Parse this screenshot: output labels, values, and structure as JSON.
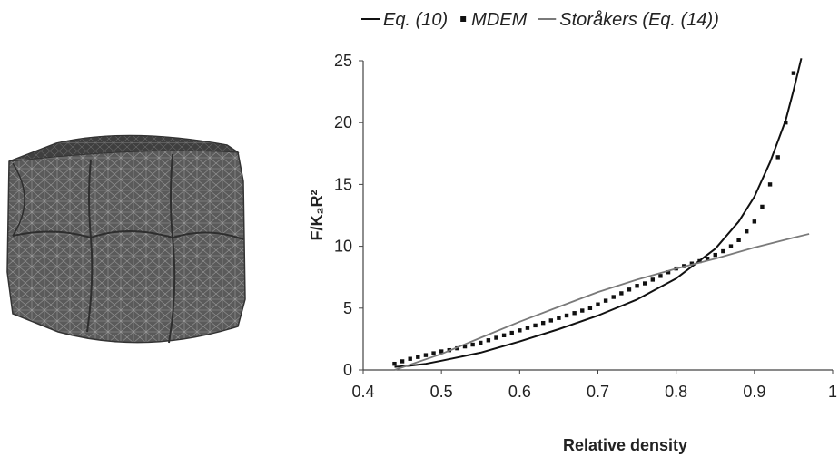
{
  "mesh_figure": {
    "description_icon": "meshed-particle-cube-icon"
  },
  "chart_data": {
    "type": "line",
    "title": "",
    "xlabel": "Relative density",
    "ylabel": "F/K₂R²",
    "xlim": [
      0.4,
      1
    ],
    "ylim": [
      0,
      25
    ],
    "x_ticks": [
      0.4,
      0.5,
      0.6,
      0.7,
      0.8,
      0.9,
      1
    ],
    "x_tick_labels": [
      "0.4",
      "0.5",
      "0.6",
      "0.7",
      "0.8",
      "0.9",
      "1"
    ],
    "y_ticks": [
      0,
      5,
      10,
      15,
      20,
      25
    ],
    "y_tick_labels": [
      "0",
      "5",
      "10",
      "15",
      "20",
      "25"
    ],
    "grid": false,
    "legend_position": "top",
    "series": [
      {
        "name": "Eq. (10)",
        "style": "solid-line",
        "color": "#111111",
        "x": [
          0.44,
          0.46,
          0.48,
          0.5,
          0.55,
          0.6,
          0.65,
          0.7,
          0.75,
          0.8,
          0.85,
          0.88,
          0.9,
          0.92,
          0.94,
          0.95,
          0.96
        ],
        "y": [
          0.25,
          0.35,
          0.5,
          0.75,
          1.4,
          2.3,
          3.3,
          4.4,
          5.7,
          7.4,
          9.8,
          12.0,
          14.0,
          16.8,
          20.2,
          22.6,
          25.2
        ]
      },
      {
        "name": "MDEM",
        "style": "square-markers",
        "color": "#111111",
        "x": [
          0.44,
          0.45,
          0.46,
          0.47,
          0.48,
          0.49,
          0.5,
          0.51,
          0.52,
          0.53,
          0.54,
          0.55,
          0.56,
          0.57,
          0.58,
          0.59,
          0.6,
          0.61,
          0.62,
          0.63,
          0.64,
          0.65,
          0.66,
          0.67,
          0.68,
          0.69,
          0.7,
          0.71,
          0.72,
          0.73,
          0.74,
          0.75,
          0.76,
          0.77,
          0.78,
          0.79,
          0.8,
          0.81,
          0.82,
          0.83,
          0.84,
          0.85,
          0.86,
          0.87,
          0.88,
          0.89,
          0.9,
          0.91,
          0.92,
          0.93,
          0.94,
          0.95
        ],
        "y": [
          0.5,
          0.7,
          0.9,
          1.05,
          1.2,
          1.35,
          1.5,
          1.6,
          1.75,
          1.9,
          2.05,
          2.2,
          2.4,
          2.6,
          2.8,
          3.0,
          3.2,
          3.4,
          3.6,
          3.8,
          4.0,
          4.2,
          4.4,
          4.6,
          4.8,
          5.0,
          5.3,
          5.6,
          5.9,
          6.2,
          6.5,
          6.8,
          7.0,
          7.3,
          7.6,
          7.9,
          8.2,
          8.4,
          8.6,
          8.8,
          9.0,
          9.3,
          9.6,
          10.0,
          10.5,
          11.2,
          12.0,
          13.2,
          15.0,
          17.2,
          20.0,
          24.0
        ]
      },
      {
        "name": "Storåkers (Eq. (14))",
        "style": "solid-line",
        "color": "#7a7a7a",
        "x": [
          0.44,
          0.5,
          0.55,
          0.6,
          0.65,
          0.7,
          0.75,
          0.8,
          0.85,
          0.9,
          0.95,
          0.97
        ],
        "y": [
          0.0,
          1.3,
          2.6,
          3.9,
          5.1,
          6.3,
          7.3,
          8.2,
          9.0,
          9.9,
          10.7,
          11.0
        ]
      }
    ]
  }
}
